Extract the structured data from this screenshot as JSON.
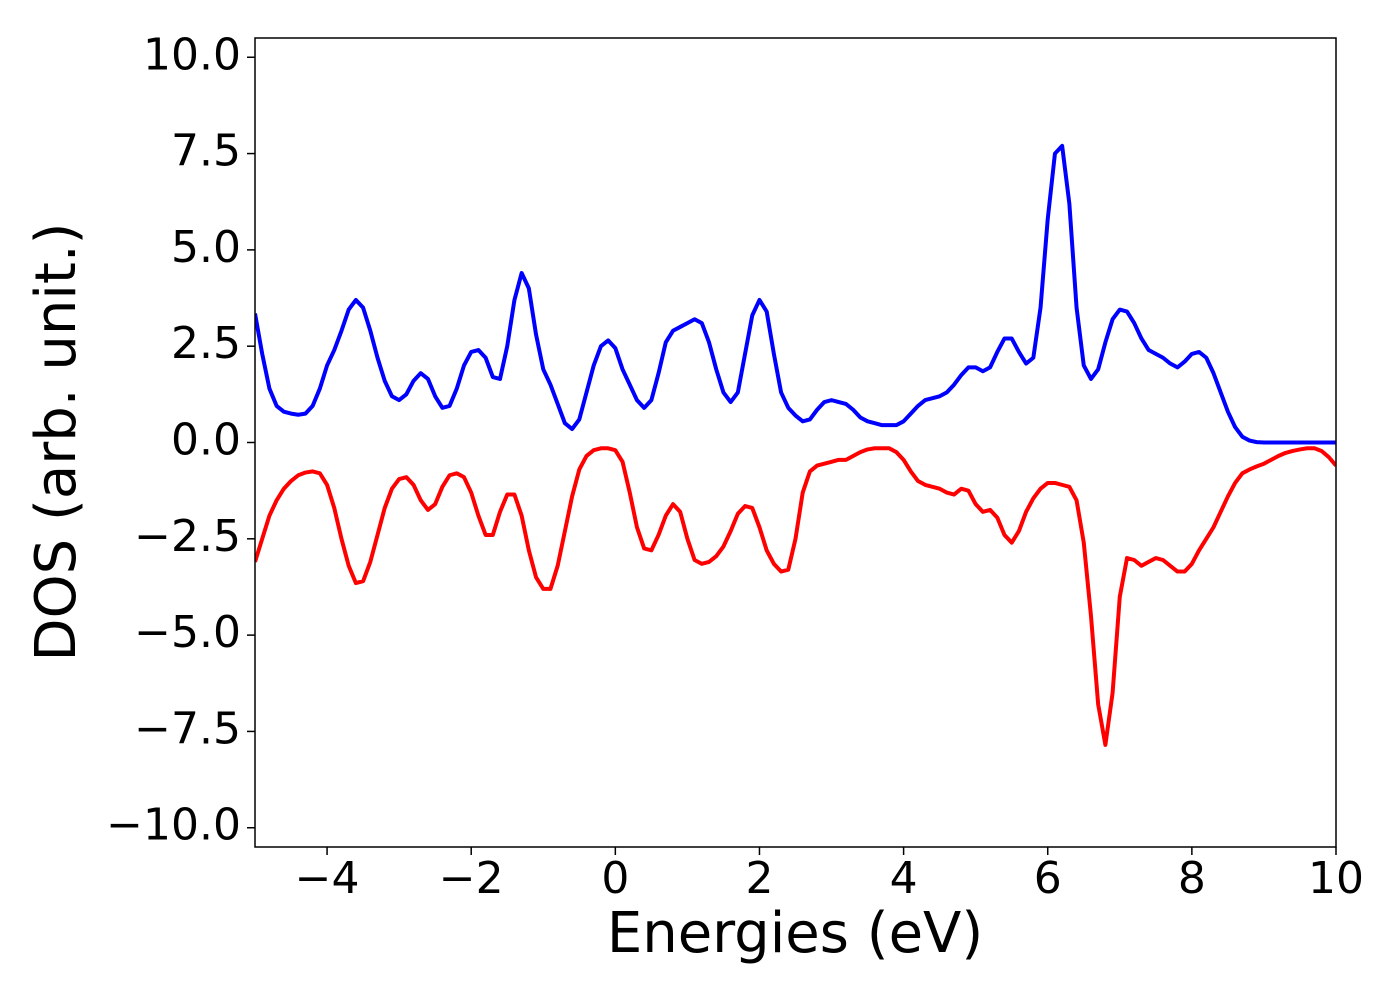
{
  "chart_data": {
    "type": "line",
    "xlabel": "Energies (eV)",
    "ylabel": "DOS (arb. unit.)",
    "xlim": [
      -5,
      10
    ],
    "ylim": [
      -10.5,
      10.5
    ],
    "xticks": [
      {
        "value": -4,
        "label": "−4"
      },
      {
        "value": -2,
        "label": "−2"
      },
      0,
      2,
      4,
      6,
      8,
      10
    ],
    "yticks": [
      {
        "value": 10,
        "label": "10.0"
      },
      {
        "value": 7.5,
        "label": "7.5"
      },
      {
        "value": 5,
        "label": "5.0"
      },
      {
        "value": 2.5,
        "label": "2.5"
      },
      {
        "value": 0,
        "label": "0.0"
      },
      {
        "value": -2.5,
        "label": "−2.5"
      },
      {
        "value": -5,
        "label": "−5.0"
      },
      {
        "value": -7.5,
        "label": "−7.5"
      },
      {
        "value": -10,
        "label": "−10.0"
      }
    ],
    "grid": false,
    "x": [
      -5.0,
      -4.9,
      -4.8,
      -4.7,
      -4.6,
      -4.5,
      -4.4,
      -4.3,
      -4.2,
      -4.1,
      -4.0,
      -3.9,
      -3.8,
      -3.7,
      -3.6,
      -3.5,
      -3.4,
      -3.3,
      -3.2,
      -3.1,
      -3.0,
      -2.9,
      -2.8,
      -2.7,
      -2.6,
      -2.5,
      -2.4,
      -2.3,
      -2.2,
      -2.1,
      -2.0,
      -1.9,
      -1.8,
      -1.7,
      -1.6,
      -1.5,
      -1.4,
      -1.3,
      -1.2,
      -1.1,
      -1.0,
      -0.9,
      -0.8,
      -0.7,
      -0.6,
      -0.5,
      -0.4,
      -0.3,
      -0.2,
      -0.1,
      0.0,
      0.1,
      0.2,
      0.3,
      0.4,
      0.5,
      0.6,
      0.7,
      0.8,
      0.9,
      1.0,
      1.1,
      1.2,
      1.3,
      1.4,
      1.5,
      1.6,
      1.7,
      1.8,
      1.9,
      2.0,
      2.1,
      2.2,
      2.3,
      2.4,
      2.5,
      2.6,
      2.7,
      2.8,
      2.9,
      3.0,
      3.1,
      3.2,
      3.3,
      3.4,
      3.5,
      3.6,
      3.7,
      3.8,
      3.9,
      4.0,
      4.1,
      4.2,
      4.3,
      4.4,
      4.5,
      4.6,
      4.7,
      4.8,
      4.9,
      5.0,
      5.1,
      5.2,
      5.3,
      5.4,
      5.5,
      5.6,
      5.7,
      5.8,
      5.9,
      6.0,
      6.1,
      6.2,
      6.3,
      6.4,
      6.5,
      6.6,
      6.7,
      6.8,
      6.9,
      7.0,
      7.1,
      7.2,
      7.3,
      7.4,
      7.5,
      7.6,
      7.7,
      7.8,
      7.9,
      8.0,
      8.1,
      8.2,
      8.3,
      8.4,
      8.5,
      8.6,
      8.7,
      8.8,
      8.9,
      9.0,
      9.1,
      9.2,
      9.3,
      9.4,
      9.5,
      9.6,
      9.7,
      9.8,
      9.9,
      10.0
    ],
    "series": [
      {
        "color": "#0000ff",
        "values": [
          3.35,
          2.3,
          1.4,
          0.95,
          0.8,
          0.75,
          0.72,
          0.75,
          0.95,
          1.4,
          2.0,
          2.4,
          2.9,
          3.45,
          3.7,
          3.5,
          2.9,
          2.2,
          1.6,
          1.2,
          1.1,
          1.25,
          1.6,
          1.8,
          1.65,
          1.2,
          0.9,
          0.95,
          1.4,
          2.0,
          2.35,
          2.4,
          2.2,
          1.7,
          1.65,
          2.5,
          3.7,
          4.4,
          4.0,
          2.8,
          1.9,
          1.5,
          1.0,
          0.5,
          0.35,
          0.6,
          1.3,
          2.0,
          2.5,
          2.65,
          2.45,
          1.9,
          1.5,
          1.1,
          0.9,
          1.1,
          1.8,
          2.6,
          2.9,
          3.0,
          3.1,
          3.2,
          3.1,
          2.6,
          1.9,
          1.3,
          1.05,
          1.3,
          2.3,
          3.3,
          3.7,
          3.4,
          2.3,
          1.3,
          0.9,
          0.7,
          0.55,
          0.6,
          0.85,
          1.05,
          1.1,
          1.05,
          1.0,
          0.85,
          0.65,
          0.55,
          0.5,
          0.45,
          0.45,
          0.45,
          0.55,
          0.75,
          0.95,
          1.1,
          1.15,
          1.2,
          1.3,
          1.5,
          1.75,
          1.95,
          1.95,
          1.85,
          1.95,
          2.35,
          2.7,
          2.7,
          2.35,
          2.05,
          2.2,
          3.5,
          5.8,
          7.5,
          7.7,
          6.2,
          3.5,
          2.0,
          1.65,
          1.9,
          2.6,
          3.2,
          3.45,
          3.4,
          3.1,
          2.7,
          2.4,
          2.3,
          2.2,
          2.05,
          1.95,
          2.1,
          2.3,
          2.35,
          2.2,
          1.8,
          1.3,
          0.8,
          0.4,
          0.15,
          0.05,
          0.01,
          0,
          0,
          0,
          0,
          0,
          0,
          0,
          0,
          0,
          0,
          0
        ]
      },
      {
        "color": "#ff0000",
        "values": [
          -3.1,
          -2.5,
          -1.9,
          -1.5,
          -1.2,
          -1.0,
          -0.85,
          -0.78,
          -0.75,
          -0.8,
          -1.1,
          -1.7,
          -2.5,
          -3.2,
          -3.65,
          -3.6,
          -3.1,
          -2.4,
          -1.7,
          -1.2,
          -0.95,
          -0.9,
          -1.1,
          -1.5,
          -1.75,
          -1.6,
          -1.15,
          -0.85,
          -0.8,
          -0.9,
          -1.3,
          -1.9,
          -2.4,
          -2.4,
          -1.8,
          -1.35,
          -1.35,
          -1.9,
          -2.8,
          -3.5,
          -3.8,
          -3.8,
          -3.2,
          -2.3,
          -1.4,
          -0.7,
          -0.35,
          -0.2,
          -0.15,
          -0.15,
          -0.2,
          -0.5,
          -1.3,
          -2.2,
          -2.75,
          -2.8,
          -2.4,
          -1.9,
          -1.6,
          -1.8,
          -2.5,
          -3.05,
          -3.15,
          -3.1,
          -2.95,
          -2.7,
          -2.3,
          -1.85,
          -1.65,
          -1.7,
          -2.2,
          -2.8,
          -3.15,
          -3.35,
          -3.3,
          -2.5,
          -1.3,
          -0.75,
          -0.6,
          -0.55,
          -0.5,
          -0.45,
          -0.45,
          -0.35,
          -0.25,
          -0.18,
          -0.15,
          -0.15,
          -0.15,
          -0.25,
          -0.45,
          -0.75,
          -1.0,
          -1.1,
          -1.15,
          -1.2,
          -1.3,
          -1.35,
          -1.2,
          -1.25,
          -1.6,
          -1.8,
          -1.75,
          -1.95,
          -2.4,
          -2.6,
          -2.3,
          -1.8,
          -1.45,
          -1.2,
          -1.05,
          -1.05,
          -1.1,
          -1.15,
          -1.5,
          -2.6,
          -4.5,
          -6.8,
          -7.85,
          -6.5,
          -4.0,
          -3.0,
          -3.05,
          -3.2,
          -3.1,
          -3.0,
          -3.05,
          -3.2,
          -3.35,
          -3.35,
          -3.15,
          -2.8,
          -2.5,
          -2.2,
          -1.8,
          -1.4,
          -1.05,
          -0.8,
          -0.7,
          -0.62,
          -0.55,
          -0.45,
          -0.35,
          -0.27,
          -0.22,
          -0.18,
          -0.15,
          -0.15,
          -0.22,
          -0.38,
          -0.6
        ]
      }
    ]
  }
}
